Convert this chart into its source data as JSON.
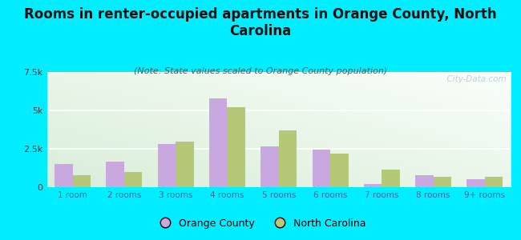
{
  "title": "Rooms in renter-occupied apartments in Orange County, North\nCarolina",
  "subtitle": "(Note: State values scaled to Orange County population)",
  "categories": [
    "1 room",
    "2 rooms",
    "3 rooms",
    "4 rooms",
    "5 rooms",
    "6 rooms",
    "7 rooms",
    "8 rooms",
    "9+ rooms"
  ],
  "orange_county": [
    1500,
    1650,
    2800,
    5800,
    2650,
    2450,
    200,
    800,
    500
  ],
  "north_carolina": [
    800,
    1000,
    2950,
    5200,
    3700,
    2200,
    1150,
    700,
    700
  ],
  "bar_color_oc": "#c9a8e0",
  "bar_color_nc": "#b5c878",
  "background_outer": "#00eeff",
  "ylim": [
    0,
    7500
  ],
  "yticks": [
    0,
    2500,
    5000,
    7500
  ],
  "ytick_labels": [
    "0",
    "2.5k",
    "5k",
    "7.5k"
  ],
  "watermark": "  City-Data.com",
  "legend_oc": "Orange County",
  "legend_nc": "North Carolina",
  "bar_width": 0.35,
  "title_fontsize": 12,
  "subtitle_fontsize": 8
}
